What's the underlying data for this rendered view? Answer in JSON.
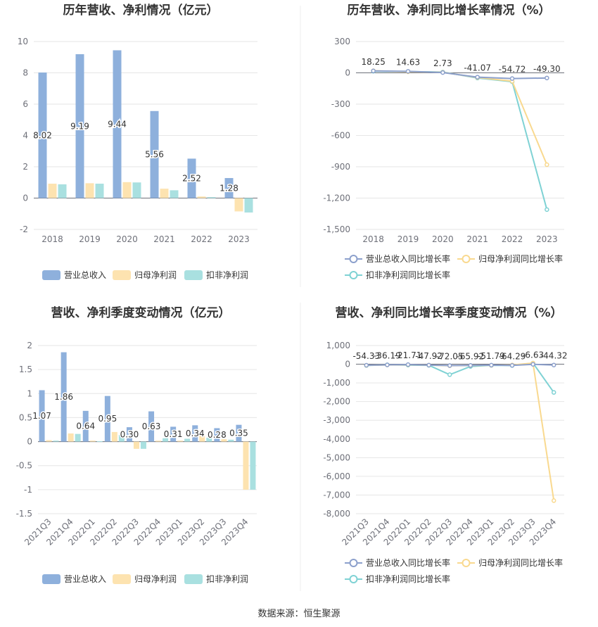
{
  "source_label": "数据来源：恒生聚源",
  "colors": {
    "revenue": "#8eb0dc",
    "parent_net": "#fde3b0",
    "deducted_net": "#a9e0e0",
    "revenue_line": "#8ca0cc",
    "parent_line": "#f9d98f",
    "deducted_line": "#7fd2d4"
  },
  "chart_data": [
    {
      "type": "bar",
      "title": "历年营收、净利情况（亿元）",
      "categories": [
        "2018",
        "2019",
        "2020",
        "2021",
        "2022",
        "2023"
      ],
      "series": [
        {
          "name": "营业总收入",
          "values": [
            8.02,
            9.19,
            9.44,
            5.56,
            2.52,
            1.28
          ]
        },
        {
          "name": "归母净利润",
          "values": [
            0.92,
            0.95,
            1.02,
            0.6,
            0.1,
            -0.85
          ]
        },
        {
          "name": "扣非净利润",
          "values": [
            0.88,
            0.92,
            1.0,
            0.5,
            0.06,
            -0.92
          ]
        }
      ],
      "data_labels": [
        "8.02",
        "9.19",
        "9.44",
        "5.56",
        "2.52",
        "1.28"
      ],
      "ylim": [
        -2,
        10
      ],
      "yticks": [
        "-2",
        "0",
        "2",
        "4",
        "6",
        "8",
        "10"
      ],
      "grid": true,
      "legend": "bottom"
    },
    {
      "type": "line",
      "title": "历年营收、净利同比增长率情况（%）",
      "categories": [
        "2018",
        "2019",
        "2020",
        "2021",
        "2022",
        "2023"
      ],
      "series": [
        {
          "name": "营业总收入同比增长率",
          "values": [
            18.25,
            14.63,
            2.73,
            -41.07,
            -54.72,
            -49.3
          ]
        },
        {
          "name": "归母净利润同比增长率",
          "values": [
            20,
            10,
            5,
            -45,
            -80,
            -880
          ]
        },
        {
          "name": "扣非净利润同比增长率",
          "values": [
            15,
            12,
            8,
            -50,
            -85,
            -1310
          ]
        }
      ],
      "data_labels": [
        "18.25",
        "14.63",
        "2.73",
        "-41.07",
        "-54.72",
        "-49.30"
      ],
      "ylim": [
        -1500,
        300
      ],
      "yticks": [
        "-1,500",
        "-1,200",
        "-900",
        "-600",
        "-300",
        "0",
        "300"
      ],
      "grid": true,
      "legend": "bottom"
    },
    {
      "type": "bar",
      "title": "营收、净利季度变动情况（亿元）",
      "categories": [
        "2021Q3",
        "2021Q4",
        "2022Q1",
        "2022Q2",
        "2022Q3",
        "2022Q4",
        "2023Q1",
        "2023Q2",
        "2023Q3",
        "2023Q4"
      ],
      "series": [
        {
          "name": "营业总收入",
          "values": [
            1.07,
            1.86,
            0.64,
            0.95,
            0.3,
            0.63,
            0.31,
            0.34,
            0.28,
            0.35
          ]
        },
        {
          "name": "归母净利润",
          "values": [
            0.03,
            0.17,
            0.02,
            0.2,
            -0.15,
            0.02,
            0.02,
            0.12,
            0.05,
            -1.0
          ]
        },
        {
          "name": "扣非净利润",
          "values": [
            0.02,
            0.16,
            0.01,
            0.14,
            -0.15,
            0.07,
            0.06,
            0.08,
            0.04,
            -1.0
          ]
        }
      ],
      "data_labels": [
        "1.07",
        "1.86",
        "0.64",
        "0.95",
        "0.30",
        "0.63",
        "0.31",
        "0.34",
        "0.28",
        "0.35"
      ],
      "ylim": [
        -1.5,
        2
      ],
      "yticks": [
        "-1.5",
        "-1",
        "-0.5",
        "0",
        "0.5",
        "1",
        "1.5",
        "2"
      ],
      "grid": true,
      "legend": "bottom"
    },
    {
      "type": "line",
      "title": "营收、净利同比增长率季度变动情况（%）",
      "categories": [
        "2021Q3",
        "2021Q4",
        "2022Q1",
        "2022Q2",
        "2022Q3",
        "2022Q4",
        "2023Q1",
        "2023Q2",
        "2023Q3",
        "2023Q4"
      ],
      "series": [
        {
          "name": "营业总收入同比增长率",
          "values": [
            -54.33,
            -36.19,
            -21.71,
            -47.92,
            -72.05,
            -65.92,
            -51.79,
            -64.29,
            -6.63,
            -44.32
          ]
        },
        {
          "name": "归母净利润同比增长率",
          "values": [
            -60,
            -40,
            -30,
            -50,
            -80,
            -70,
            -60,
            -40,
            60,
            -7300
          ]
        },
        {
          "name": "扣非净利润同比增长率",
          "values": [
            -70,
            -30,
            -50,
            -60,
            -560,
            -120,
            -60,
            -70,
            60,
            -1510
          ]
        }
      ],
      "data_labels": [
        "-54.33",
        "-36.19",
        "-21.71",
        "-47.92",
        "-72.05",
        "-65.92",
        "-51.79",
        "-64.29",
        "-6.63",
        "-44.32"
      ],
      "ylim": [
        -8000,
        1000
      ],
      "yticks": [
        "-8,000",
        "-7,000",
        "-6,000",
        "-5,000",
        "-4,000",
        "-3,000",
        "-2,000",
        "-1,000",
        "0",
        "1,000"
      ],
      "grid": true,
      "legend": "bottom"
    }
  ]
}
